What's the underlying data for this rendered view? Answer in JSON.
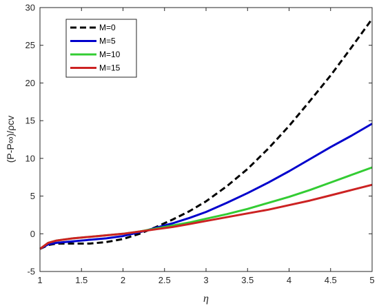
{
  "chart_data": {
    "type": "line",
    "title": "",
    "xlabel": "η",
    "ylabel": "(P-P∞)/ρcv",
    "xlim": [
      1,
      5
    ],
    "ylim": [
      -5,
      30
    ],
    "xticks": [
      "1",
      "1.5",
      "2",
      "2.5",
      "3",
      "3.5",
      "4",
      "4.5",
      "5"
    ],
    "yticks": [
      "-5",
      "0",
      "5",
      "10",
      "15",
      "20",
      "25",
      "30"
    ],
    "grid": false,
    "legend_position": "top-left",
    "series": [
      {
        "name": "M=0",
        "color": "#000000",
        "dash": "dashed",
        "x": [
          1.0,
          1.1,
          1.2,
          1.4,
          1.6,
          1.8,
          2.0,
          2.2,
          2.4,
          2.6,
          2.8,
          3.0,
          3.25,
          3.5,
          3.75,
          4.0,
          4.25,
          4.5,
          4.75,
          5.0
        ],
        "y": [
          -2.0,
          -1.5,
          -1.3,
          -1.3,
          -1.3,
          -1.1,
          -0.7,
          0.0,
          0.9,
          1.9,
          3.0,
          4.3,
          6.3,
          8.6,
          11.3,
          14.3,
          17.6,
          21.0,
          24.7,
          28.5
        ]
      },
      {
        "name": "M=5",
        "color": "#0000cc",
        "dash": "solid",
        "x": [
          1.0,
          1.1,
          1.2,
          1.4,
          1.6,
          1.8,
          2.0,
          2.2,
          2.4,
          2.6,
          2.8,
          3.0,
          3.25,
          3.5,
          3.75,
          4.0,
          4.25,
          4.5,
          4.75,
          5.0
        ],
        "y": [
          -2.0,
          -1.4,
          -1.2,
          -1.0,
          -0.8,
          -0.6,
          -0.3,
          0.2,
          0.8,
          1.4,
          2.1,
          2.9,
          4.1,
          5.4,
          6.8,
          8.3,
          9.9,
          11.5,
          13.0,
          14.6
        ]
      },
      {
        "name": "M=10",
        "color": "#33cc33",
        "dash": "solid",
        "x": [
          1.0,
          1.1,
          1.2,
          1.4,
          1.6,
          1.8,
          2.0,
          2.2,
          2.4,
          2.6,
          2.8,
          3.0,
          3.25,
          3.5,
          3.75,
          4.0,
          4.25,
          4.5,
          4.75,
          5.0
        ],
        "y": [
          -2.0,
          -1.2,
          -0.9,
          -0.6,
          -0.4,
          -0.2,
          0.0,
          0.3,
          0.7,
          1.1,
          1.5,
          2.0,
          2.6,
          3.3,
          4.1,
          4.9,
          5.8,
          6.8,
          7.8,
          8.8
        ]
      },
      {
        "name": "M=15",
        "color": "#cc2222",
        "dash": "solid",
        "x": [
          1.0,
          1.1,
          1.2,
          1.4,
          1.6,
          1.8,
          2.0,
          2.2,
          2.4,
          2.6,
          2.8,
          3.0,
          3.25,
          3.5,
          3.75,
          4.0,
          4.25,
          4.5,
          4.75,
          5.0
        ],
        "y": [
          -2.0,
          -1.2,
          -0.9,
          -0.6,
          -0.4,
          -0.2,
          0.0,
          0.3,
          0.6,
          0.9,
          1.3,
          1.7,
          2.2,
          2.7,
          3.2,
          3.8,
          4.4,
          5.1,
          5.8,
          6.5
        ]
      }
    ]
  }
}
